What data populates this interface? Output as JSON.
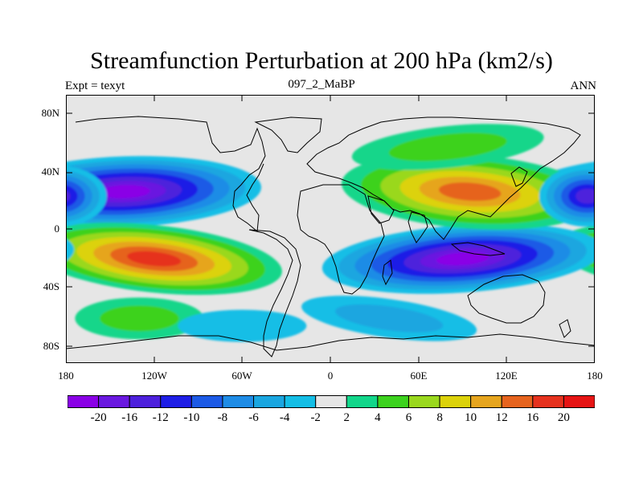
{
  "title": "Streamfunction Perturbation at 200 hPa (km2/s)",
  "subtitle_left": "Expt = texyt",
  "subtitle_center": "097_2_MaBP",
  "subtitle_right": "ANN",
  "chart_data": {
    "type": "heatmap",
    "variable": "Streamfunction perturbation at 200 hPa",
    "units": "km2/s",
    "x_axis": {
      "range": [
        -180,
        180
      ],
      "tick_labels": [
        "180",
        "120W",
        "60W",
        "0",
        "60E",
        "120E",
        "180"
      ]
    },
    "y_axis": {
      "range": [
        -90,
        90
      ],
      "tick_labels": [
        "80N",
        "40N",
        "0",
        "40S",
        "80S"
      ]
    },
    "contour_levels": [
      -20,
      -16,
      -12,
      -10,
      -8,
      -6,
      -4,
      -2,
      2,
      4,
      6,
      8,
      10,
      12,
      16,
      20
    ],
    "colorbar_labels": [
      "-20",
      "-16",
      "-12",
      "-10",
      "-8",
      "-6",
      "-4",
      "-2",
      "2",
      "4",
      "6",
      "8",
      "10",
      "12",
      "16",
      "20"
    ],
    "colors": [
      "#8a00e6",
      "#6a18e0",
      "#4d20dc",
      "#1e1ee6",
      "#1c5ae6",
      "#1e8ce6",
      "#1aa6e0",
      "#14bee6",
      "#e6e6e6",
      "#12d68a",
      "#3cd21e",
      "#9ad81e",
      "#dcd20a",
      "#e6a51e",
      "#e6641e",
      "#e6321e",
      "#e61414"
    ],
    "features": [
      {
        "lon": -140,
        "lat": 25,
        "value": -21
      },
      {
        "lon": -120,
        "lat": -20,
        "value": 18
      },
      {
        "lon": 90,
        "lat": -20,
        "value": -21
      },
      {
        "lon": 95,
        "lat": 25,
        "value": 15
      },
      {
        "lon": 175,
        "lat": 22,
        "value": -14
      },
      {
        "lon": 80,
        "lat": 55,
        "value": 5
      },
      {
        "lon": -130,
        "lat": -60,
        "value": 5
      },
      {
        "lon": 40,
        "lat": -60,
        "value": -4
      },
      {
        "lon": -60,
        "lat": -65,
        "value": -3
      }
    ],
    "grid": false,
    "overlay": "coastlines"
  }
}
